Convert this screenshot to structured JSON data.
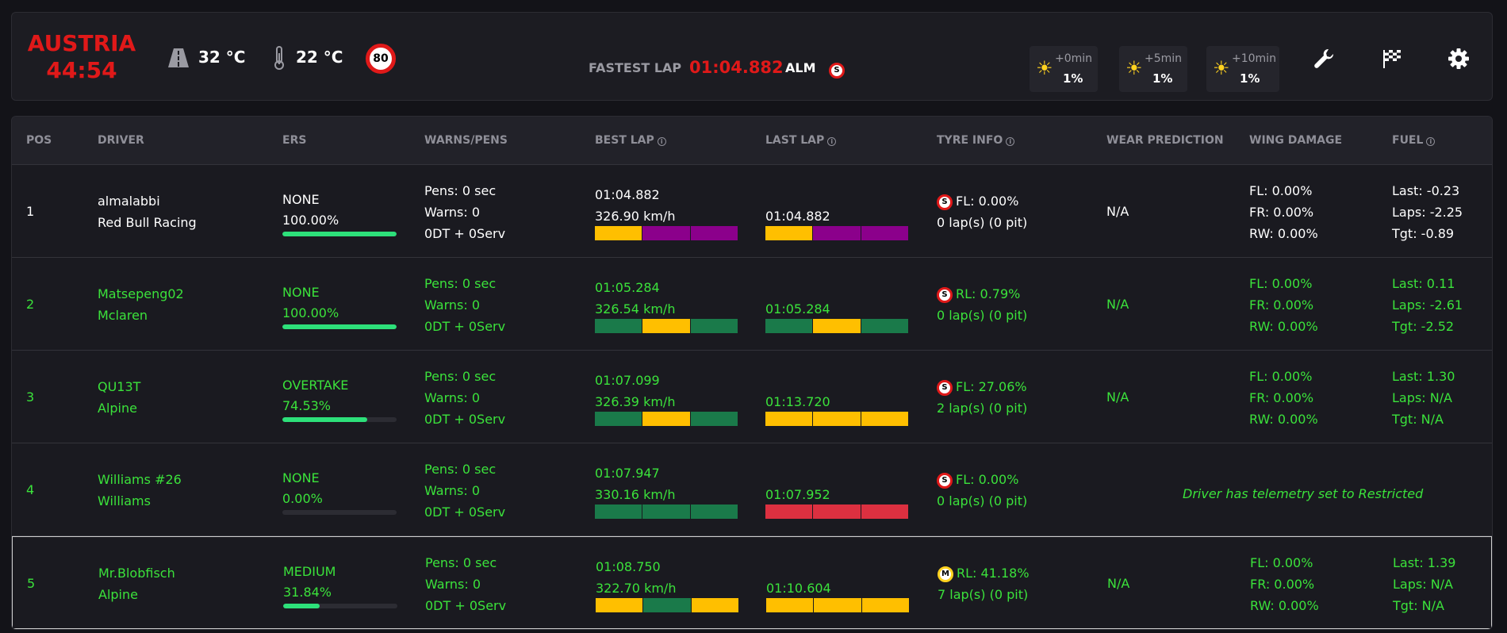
{
  "header": {
    "track": "AUSTRIA",
    "clock": "44:54",
    "road_temp": "32 °C",
    "air_temp": "22 °C",
    "speed_limit": "80",
    "fastest_lap_label": "FASTEST LAP",
    "fastest_lap_time": "01:04.882",
    "fastest_lap_driver": "ALM",
    "fastest_lap_tyre": "S",
    "weather": [
      {
        "time": "+0min",
        "rain": "1%",
        "icon": "sun-icon"
      },
      {
        "time": "+5min",
        "rain": "1%",
        "icon": "sun-icon"
      },
      {
        "time": "+10min",
        "rain": "1%",
        "icon": "sun-icon"
      }
    ],
    "icons": [
      "wrench-icon",
      "checkered-flag-icon",
      "gear-icon"
    ]
  },
  "table": {
    "headers": {
      "pos": "POS",
      "driver": "DRIVER",
      "ers": "ERS",
      "warns": "WARNS/PENS",
      "best_lap": "BEST LAP",
      "last_lap": "LAST LAP",
      "tyre": "TYRE INFO",
      "wear": "WEAR PREDICTION",
      "wing": "WING DAMAGE",
      "fuel": "FUEL"
    },
    "rows": [
      {
        "pos": "1",
        "driver": "almalabbi",
        "team": "Red Bull Racing",
        "ers_mode": "NONE",
        "ers_pct": "100.00%",
        "ers_fill": 1.0,
        "pens": "Pens: 0 sec",
        "warns": "Warns: 0",
        "dt": "0DT + 0Serv",
        "best_time": "01:04.882",
        "best_speed": "326.90 km/h",
        "best_sectors": [
          "yellow",
          "purple",
          "purple"
        ],
        "last_time": "01:04.882",
        "last_sectors": [
          "yellow",
          "purple",
          "purple"
        ],
        "tyre_compound": "S",
        "tyre_wear": "FL: 0.00%",
        "tyre_laps": "0 lap(s) (0 pit)",
        "wear_pred": "N/A",
        "wing_fl": "FL: 0.00%",
        "wing_fr": "FR: 0.00%",
        "wing_rw": "RW: 0.00%",
        "fuel_last": "Last: -0.23",
        "fuel_laps": "Laps: -2.25",
        "fuel_tgt": "Tgt: -0.89",
        "restricted": "",
        "color": "white"
      },
      {
        "pos": "2",
        "driver": "Matsepeng02",
        "team": "Mclaren",
        "ers_mode": "NONE",
        "ers_pct": "100.00%",
        "ers_fill": 1.0,
        "pens": "Pens: 0 sec",
        "warns": "Warns: 0",
        "dt": "0DT + 0Serv",
        "best_time": "01:05.284",
        "best_speed": "326.54 km/h",
        "best_sectors": [
          "green",
          "yellow",
          "green"
        ],
        "last_time": "01:05.284",
        "last_sectors": [
          "green",
          "yellow",
          "green"
        ],
        "tyre_compound": "S",
        "tyre_wear": "RL: 0.79%",
        "tyre_laps": "0 lap(s) (0 pit)",
        "wear_pred": "N/A",
        "wing_fl": "FL: 0.00%",
        "wing_fr": "FR: 0.00%",
        "wing_rw": "RW: 0.00%",
        "fuel_last": "Last: 0.11",
        "fuel_laps": "Laps: -2.61",
        "fuel_tgt": "Tgt: -2.52",
        "restricted": "",
        "color": "green"
      },
      {
        "pos": "3",
        "driver": "QU13T",
        "team": "Alpine",
        "ers_mode": "OVERTAKE",
        "ers_pct": "74.53%",
        "ers_fill": 0.7453,
        "pens": "Pens: 0 sec",
        "warns": "Warns: 0",
        "dt": "0DT + 0Serv",
        "best_time": "01:07.099",
        "best_speed": "326.39 km/h",
        "best_sectors": [
          "green",
          "yellow",
          "green"
        ],
        "last_time": "01:13.720",
        "last_sectors": [
          "yellow",
          "yellow",
          "yellow"
        ],
        "tyre_compound": "S",
        "tyre_wear": "FL: 27.06%",
        "tyre_laps": "2 lap(s) (0 pit)",
        "wear_pred": "N/A",
        "wing_fl": "FL: 0.00%",
        "wing_fr": "FR: 0.00%",
        "wing_rw": "RW: 0.00%",
        "fuel_last": "Last: 1.30",
        "fuel_laps": "Laps: N/A",
        "fuel_tgt": "Tgt: N/A",
        "restricted": "",
        "color": "green"
      },
      {
        "pos": "4",
        "driver": "Williams #26",
        "team": "Williams",
        "ers_mode": "NONE",
        "ers_pct": "0.00%",
        "ers_fill": 0.0,
        "pens": "Pens: 0 sec",
        "warns": "Warns: 0",
        "dt": "0DT + 0Serv",
        "best_time": "01:07.947",
        "best_speed": "330.16 km/h",
        "best_sectors": [
          "green",
          "green",
          "green"
        ],
        "last_time": "01:07.952",
        "last_sectors": [
          "red",
          "red",
          "red"
        ],
        "tyre_compound": "S",
        "tyre_wear": "FL: 0.00%",
        "tyre_laps": "0 lap(s) (0 pit)",
        "wear_pred": "",
        "wing_fl": "",
        "wing_fr": "",
        "wing_rw": "",
        "fuel_last": "",
        "fuel_laps": "",
        "fuel_tgt": "",
        "restricted": "Driver has telemetry set to Restricted",
        "color": "green"
      },
      {
        "pos": "5",
        "driver": "Mr.Blobfisch",
        "team": "Alpine",
        "ers_mode": "MEDIUM",
        "ers_pct": "31.84%",
        "ers_fill": 0.3184,
        "pens": "Pens: 0 sec",
        "warns": "Warns: 0",
        "dt": "0DT + 0Serv",
        "best_time": "01:08.750",
        "best_speed": "322.70 km/h",
        "best_sectors": [
          "yellow",
          "green",
          "yellow"
        ],
        "last_time": "01:10.604",
        "last_sectors": [
          "yellow",
          "yellow",
          "yellow"
        ],
        "tyre_compound": "M",
        "tyre_wear": "RL: 41.18%",
        "tyre_laps": "7 lap(s) (0 pit)",
        "wear_pred": "N/A",
        "wing_fl": "FL: 0.00%",
        "wing_fr": "FR: 0.00%",
        "wing_rw": "RW: 0.00%",
        "fuel_last": "Last: 1.39",
        "fuel_laps": "Laps: N/A",
        "fuel_tgt": "Tgt: N/A",
        "restricted": "",
        "color": "green"
      }
    ]
  }
}
